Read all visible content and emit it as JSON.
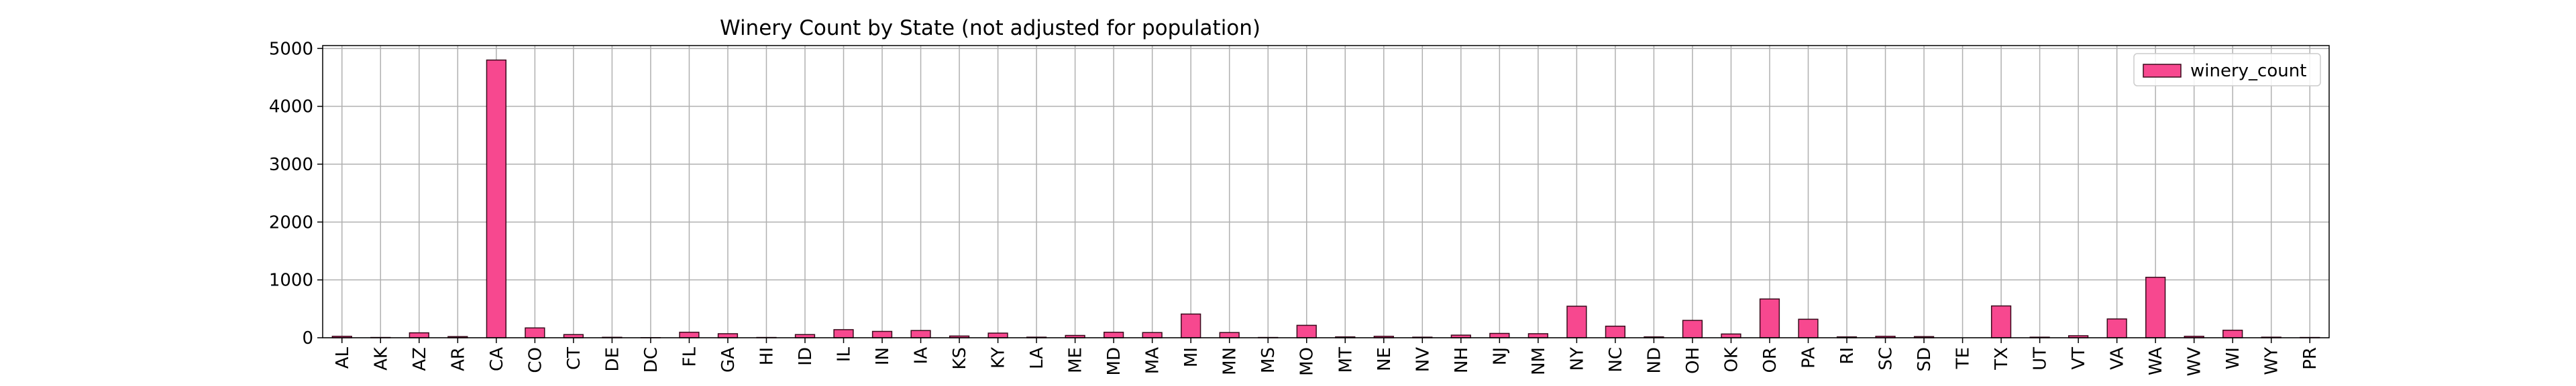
{
  "chart_data": {
    "type": "bar",
    "title": "Winery Count by State (not adjusted for population)",
    "xlabel": "",
    "ylabel": "",
    "categories": [
      "AL",
      "AK",
      "AZ",
      "AR",
      "CA",
      "CO",
      "CT",
      "DE",
      "DC",
      "FL",
      "GA",
      "HI",
      "ID",
      "IL",
      "IN",
      "IA",
      "KS",
      "KY",
      "LA",
      "ME",
      "MD",
      "MA",
      "MI",
      "MN",
      "MS",
      "MO",
      "MT",
      "NE",
      "NV",
      "NH",
      "NJ",
      "NM",
      "NY",
      "NC",
      "ND",
      "OH",
      "OK",
      "OR",
      "PA",
      "RI",
      "SC",
      "SD",
      "TE",
      "TX",
      "UT",
      "VT",
      "VA",
      "WA",
      "WV",
      "WI",
      "WY",
      "PR"
    ],
    "series": [
      {
        "name": "winery_count",
        "values": [
          25,
          5,
          85,
          20,
          4800,
          170,
          55,
          8,
          2,
          95,
          70,
          5,
          55,
          140,
          110,
          125,
          30,
          80,
          10,
          40,
          95,
          90,
          410,
          90,
          5,
          215,
          15,
          25,
          10,
          45,
          75,
          70,
          545,
          200,
          15,
          300,
          65,
          670,
          320,
          15,
          25,
          20,
          0,
          550,
          10,
          35,
          325,
          1045,
          25,
          130,
          10,
          5
        ]
      }
    ],
    "ylim": [
      0,
      5050
    ],
    "yticks": [
      0,
      1000,
      2000,
      3000,
      4000,
      5000
    ],
    "grid": true,
    "legend_position": "upper-right",
    "colors": {
      "bar_fill": "#f7488f",
      "bar_edge": "#3a0a1c",
      "grid": "#b0b0b0",
      "axis": "#000000"
    }
  }
}
